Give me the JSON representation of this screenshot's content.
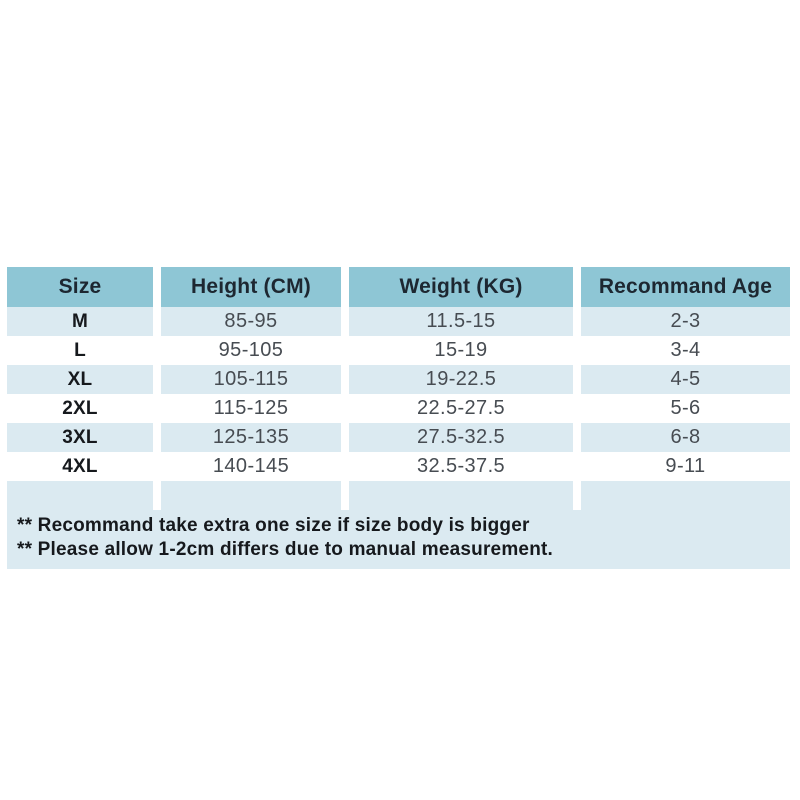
{
  "theme": {
    "header_bg": "#8ec6d5",
    "header_text": "#1d2731",
    "row_alt_bg": "#dbeaf1",
    "row_bg": "#ffffff",
    "value_text": "#474c52",
    "strong_text": "#16191d"
  },
  "table": {
    "columns": [
      {
        "label": "Size"
      },
      {
        "label": "Height (CM)"
      },
      {
        "label": "Weight (KG)"
      },
      {
        "label": "Recommand Age"
      }
    ],
    "rows": [
      {
        "size": "M",
        "height": "85-95",
        "weight": "11.5-15",
        "age": "2-3"
      },
      {
        "size": "L",
        "height": "95-105",
        "weight": "15-19",
        "age": "3-4"
      },
      {
        "size": "XL",
        "height": "105-115",
        "weight": "19-22.5",
        "age": "4-5"
      },
      {
        "size": "2XL",
        "height": "115-125",
        "weight": "22.5-27.5",
        "age": "5-6"
      },
      {
        "size": "3XL",
        "height": "125-135",
        "weight": "27.5-32.5",
        "age": "6-8"
      },
      {
        "size": "4XL",
        "height": "140-145",
        "weight": "32.5-37.5",
        "age": "9-11"
      }
    ]
  },
  "notes": {
    "line1": "** Recommand take extra one size if size body is bigger",
    "line2": "** Please allow 1-2cm differs due to manual measurement."
  }
}
